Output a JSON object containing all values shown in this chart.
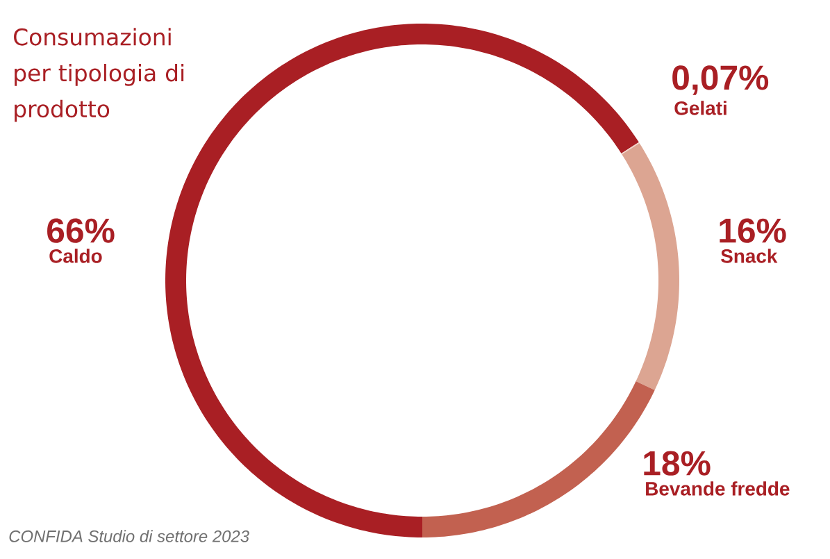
{
  "chart_data": {
    "type": "donut",
    "title": "Consumazioni per tipologia di prodotto",
    "categories": [
      "Caldo",
      "Gelati",
      "Snack",
      "Bevande fredde"
    ],
    "values": [
      66,
      0.07,
      16,
      18
    ],
    "value_labels": [
      "66%",
      "0,07%",
      "16%",
      "18%"
    ],
    "colors": [
      "#a91f24",
      "#f2d3c8",
      "#dca592",
      "#c26150"
    ],
    "annotations": [
      "CONFIDA Studio di settore 2023"
    ]
  }
}
